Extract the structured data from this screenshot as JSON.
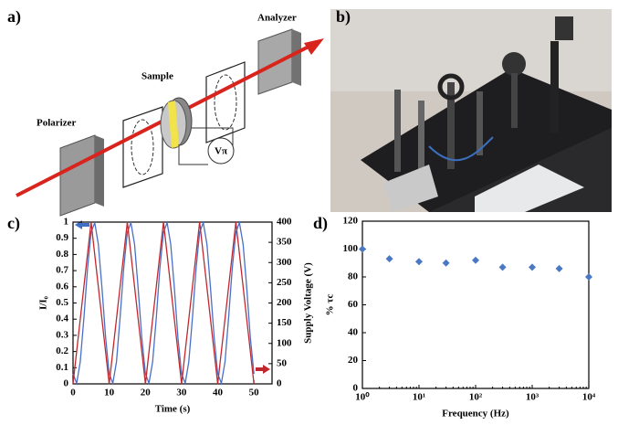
{
  "panels": {
    "a": "a)",
    "b": "b)",
    "c": "c)",
    "d": "d)"
  },
  "diagram": {
    "polarizer": "Polarizer",
    "sample": "Sample",
    "analyzer": "Analyzer",
    "voltage": "Vπ"
  },
  "chart_data": [
    {
      "type": "line",
      "xlabel": "Time (s)",
      "ylabel": "I/I₀",
      "y2label": "Supply Voltage (V)",
      "xlim": [
        0,
        55
      ],
      "xticks": [
        0,
        10,
        20,
        30,
        40,
        50
      ],
      "ylim": [
        0,
        1
      ],
      "yticks": [
        0,
        0.1,
        0.2,
        0.3,
        0.4,
        0.5,
        0.6,
        0.7,
        0.8,
        0.9,
        1
      ],
      "y2lim": [
        0,
        400
      ],
      "y2ticks": [
        0,
        50,
        100,
        150,
        200,
        250,
        300,
        350,
        400
      ],
      "grid": false,
      "series": [
        {
          "name": "I/I0",
          "color": "#4a6fc7",
          "x": [
            0,
            1,
            2,
            3,
            4,
            5,
            6,
            7,
            8,
            9,
            10,
            11,
            12,
            13,
            14,
            15,
            16,
            17,
            18,
            19,
            20,
            21,
            22,
            23,
            24,
            25,
            26,
            27,
            28,
            29,
            30,
            31,
            32,
            33,
            34,
            35,
            36,
            37,
            38,
            39,
            40,
            41,
            42,
            43,
            44,
            45,
            46,
            47,
            48,
            49,
            50
          ],
          "values": [
            0.062,
            0.004,
            0.136,
            0.406,
            0.713,
            0.938,
            0.996,
            0.864,
            0.594,
            0.287,
            0.062,
            0.004,
            0.136,
            0.406,
            0.713,
            0.938,
            0.996,
            0.864,
            0.594,
            0.287,
            0.062,
            0.004,
            0.136,
            0.406,
            0.713,
            0.938,
            0.996,
            0.864,
            0.594,
            0.287,
            0.062,
            0.004,
            0.136,
            0.406,
            0.713,
            0.938,
            0.996,
            0.864,
            0.594,
            0.287,
            0.062,
            0.004,
            0.136,
            0.406,
            0.713,
            0.938,
            0.996,
            0.864,
            0.594,
            0.287,
            0.062
          ]
        },
        {
          "name": "Supply Voltage",
          "color": "#c0282f",
          "axis": "y2",
          "x": [
            0,
            5,
            10,
            15,
            20,
            25,
            30,
            35,
            40,
            45,
            50
          ],
          "values": [
            0,
            400,
            0,
            400,
            0,
            400,
            0,
            400,
            0,
            400,
            0
          ]
        }
      ]
    },
    {
      "type": "scatter",
      "xlabel": "Frequency (Hz)",
      "ylabel": "% τc",
      "xscale": "log",
      "xlim": [
        1,
        10000
      ],
      "xticks": [
        {
          "value": 1,
          "label": "10⁰"
        },
        {
          "value": 10,
          "label": "10¹"
        },
        {
          "value": 100,
          "label": "10²"
        },
        {
          "value": 1000,
          "label": "10³"
        },
        {
          "value": 10000,
          "label": "10⁴"
        }
      ],
      "ylim": [
        0,
        120
      ],
      "yticks": [
        0,
        20,
        40,
        60,
        80,
        100,
        120
      ],
      "grid": false,
      "color": "#4a78c2",
      "x": [
        1,
        3,
        10,
        30,
        100,
        300,
        1000,
        3000,
        10000
      ],
      "values": [
        100,
        93,
        91,
        90,
        92,
        87,
        87,
        86,
        80
      ]
    }
  ]
}
